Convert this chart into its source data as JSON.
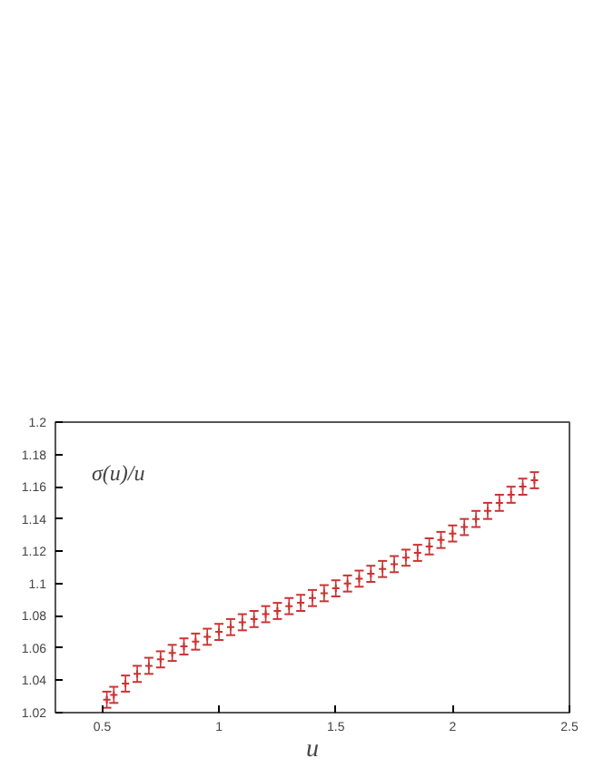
{
  "chart_data": {
    "type": "scatter",
    "xlabel": "u",
    "annotations": [
      "σ(u)/u"
    ],
    "x": [
      0.52,
      0.55,
      0.6,
      0.65,
      0.7,
      0.75,
      0.8,
      0.85,
      0.9,
      0.95,
      1.0,
      1.05,
      1.1,
      1.15,
      1.2,
      1.25,
      1.3,
      1.35,
      1.4,
      1.45,
      1.5,
      1.55,
      1.6,
      1.65,
      1.7,
      1.75,
      1.8,
      1.85,
      1.9,
      1.95,
      2.0,
      2.05,
      2.1,
      2.15,
      2.2,
      2.25,
      2.3,
      2.35
    ],
    "series": [
      {
        "color": "#cc3333",
        "values": [
          1.028,
          1.031,
          1.038,
          1.044,
          1.049,
          1.053,
          1.057,
          1.061,
          1.064,
          1.067,
          1.07,
          1.073,
          1.076,
          1.078,
          1.081,
          1.083,
          1.086,
          1.088,
          1.091,
          1.094,
          1.097,
          1.1,
          1.103,
          1.106,
          1.109,
          1.112,
          1.116,
          1.119,
          1.123,
          1.127,
          1.131,
          1.135,
          1.14,
          1.145,
          1.15,
          1.155,
          1.16,
          1.164
        ],
        "errors": [
          0.005,
          0.005,
          0.005,
          0.005,
          0.005,
          0.005,
          0.005,
          0.005,
          0.005,
          0.005,
          0.005,
          0.005,
          0.005,
          0.005,
          0.005,
          0.005,
          0.005,
          0.005,
          0.005,
          0.005,
          0.005,
          0.005,
          0.005,
          0.005,
          0.005,
          0.005,
          0.005,
          0.005,
          0.005,
          0.005,
          0.005,
          0.005,
          0.005,
          0.005,
          0.005,
          0.005,
          0.005,
          0.005
        ]
      }
    ],
    "marker": "cross",
    "xlim": [
      0.3,
      2.5
    ],
    "ylim": [
      1.02,
      1.2
    ],
    "xticks": [
      0.5,
      1,
      1.5,
      2,
      2.5
    ],
    "yticks": [
      1.02,
      1.04,
      1.06,
      1.08,
      1.1,
      1.12,
      1.14,
      1.16,
      1.18,
      1.2
    ],
    "grid": false
  }
}
